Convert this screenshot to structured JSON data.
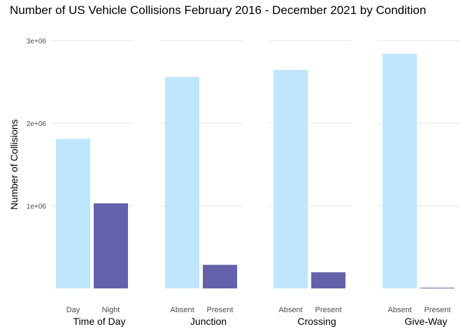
{
  "chart_data": {
    "type": "bar",
    "title": "Number of US Vehicle Collisions February 2016 - December 2021 by Condition",
    "ylabel": "Number of Collisions",
    "ylim": [
      0,
      3000000
    ],
    "yticks": [
      {
        "value": 1000000,
        "label": "1e+06"
      },
      {
        "value": 2000000,
        "label": "2e+06"
      },
      {
        "value": 3000000,
        "label": "3e+06"
      }
    ],
    "grid": true,
    "legend": "none",
    "colors": {
      "first": "#bfe6ff",
      "second": "#6461ab"
    },
    "facets": [
      {
        "label": "Time of Day",
        "categories": [
          "Day",
          "Night"
        ],
        "values": [
          1810000,
          1030000
        ]
      },
      {
        "label": "Junction",
        "categories": [
          "Absent",
          "Present"
        ],
        "values": [
          2560000,
          285000
        ]
      },
      {
        "label": "Crossing",
        "categories": [
          "Absent",
          "Present"
        ],
        "values": [
          2645000,
          195000
        ]
      },
      {
        "label": "Give-Way",
        "categories": [
          "Absent",
          "Present"
        ],
        "values": [
          2840000,
          8000
        ]
      }
    ]
  }
}
